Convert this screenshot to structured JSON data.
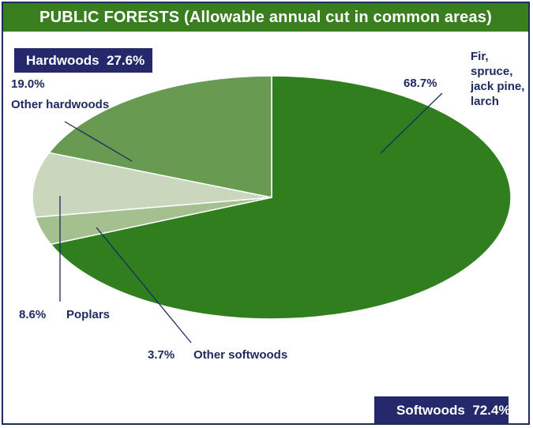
{
  "title": "PUBLIC FORESTS (Allowable annual cut in common areas)",
  "groups": {
    "hardwoods": {
      "label": "Hardwoods",
      "value": "27.6%"
    },
    "softwoods": {
      "label": "Softwoods",
      "value": "72.4%"
    }
  },
  "colors": {
    "title_bg": "#3a7f1f",
    "box_bg": "#25296b",
    "text": "#1f2a60",
    "fir": "#2f7f1f",
    "other_hardwoods": "#689a51",
    "poplars": "#c9d8bd",
    "other_softwoods": "#a4c08e"
  },
  "chart_data": {
    "type": "pie",
    "title": "PUBLIC FORESTS (Allowable annual cut in common areas)",
    "slices": [
      {
        "label": "Fir, spruce, jack pine, larch",
        "lines": [
          "Fir,",
          "spruce,",
          "jack pine,",
          "larch"
        ],
        "value": 68.7,
        "display": "68.7%",
        "group": "Softwoods",
        "color": "#2f7f1f"
      },
      {
        "label": "Other softwoods",
        "lines": [
          "Other softwoods"
        ],
        "value": 3.7,
        "display": "3.7%",
        "group": "Softwoods",
        "color": "#a4c08e"
      },
      {
        "label": "Poplars",
        "lines": [
          "Poplars"
        ],
        "value": 8.6,
        "display": "8.6%",
        "group": "Hardwoods",
        "color": "#c9d8bd"
      },
      {
        "label": "Other hardwoods",
        "lines": [
          "Other hardwoods"
        ],
        "value": 19.0,
        "display": "19.0%",
        "group": "Hardwoods",
        "color": "#689a51"
      }
    ],
    "group_totals": [
      {
        "name": "Hardwoods",
        "value": 27.6
      },
      {
        "name": "Softwoods",
        "value": 72.4
      }
    ]
  }
}
